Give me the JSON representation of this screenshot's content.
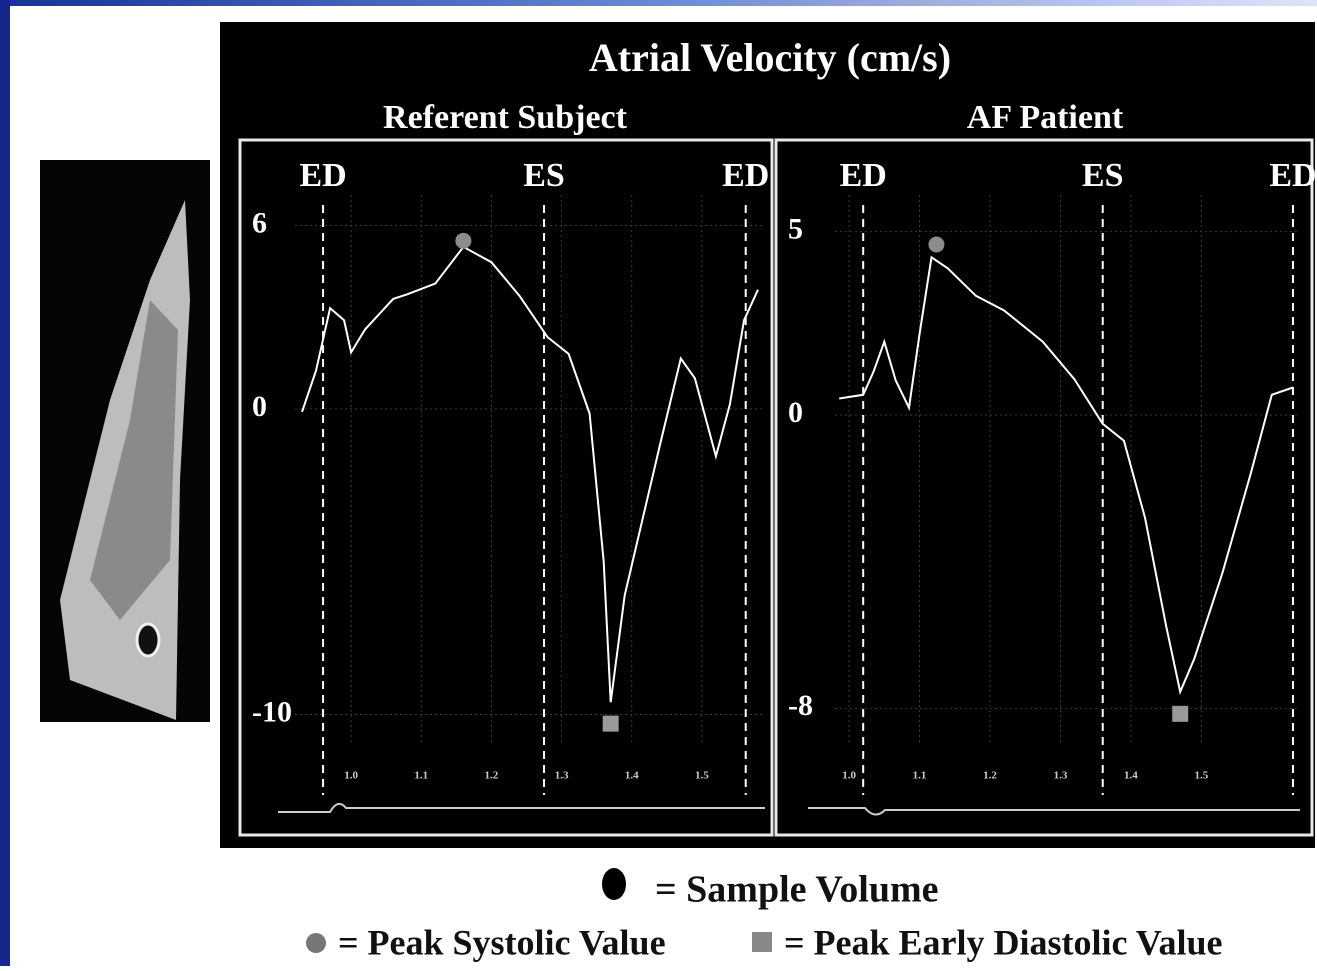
{
  "title": "Atrial Velocity (cm/s)",
  "legend": [
    "= Sample Volume",
    "= Peak Systolic Value",
    "= Peak Early Diastolic Value"
  ],
  "chart_data": [
    {
      "type": "line",
      "title": "Referent Subject",
      "color": "#ffffff",
      "grid": true,
      "x": [
        0.93,
        0.95,
        0.97,
        0.99,
        1.0,
        1.02,
        1.06,
        1.08,
        1.12,
        1.16,
        1.2,
        1.24,
        1.28,
        1.31,
        1.34,
        1.36,
        1.37,
        1.39,
        1.44,
        1.47,
        1.49,
        1.52,
        1.54,
        1.56,
        1.58
      ],
      "values": [
        -0.1,
        1.25,
        3.3,
        2.9,
        1.85,
        2.6,
        3.6,
        3.75,
        4.1,
        5.3,
        4.8,
        3.7,
        2.35,
        1.8,
        -0.15,
        -5.0,
        -9.6,
        -6.1,
        -1.2,
        1.65,
        1.0,
        -1.55,
        0.15,
        2.9,
        3.9
      ],
      "xlim": [
        0.92,
        1.59
      ],
      "ylim": [
        -11,
        7
      ],
      "xticks": [
        {
          "value": 1.0,
          "label": "1.0"
        },
        1.1,
        1.2,
        1.3,
        1.4,
        1.5
      ],
      "yticks": [
        -10,
        0,
        6
      ],
      "events": [
        {
          "label": "ED",
          "x": 0.96
        },
        {
          "label": "ES",
          "x": 1.275
        },
        {
          "label": "ED",
          "x": 1.5625
        }
      ],
      "peak_systolic": {
        "x": 1.16,
        "y": 5.5,
        "color": "#8c8c8c"
      },
      "peak_early_diastolic": {
        "x": 1.37,
        "y": -10.3,
        "color": "#9a9a9a"
      }
    },
    {
      "type": "line",
      "title": "AF Patient",
      "color": "#ffffff",
      "grid": true,
      "x": [
        0.986,
        1.02,
        1.035,
        1.05,
        1.066,
        1.085,
        1.1,
        1.117,
        1.14,
        1.18,
        1.22,
        1.275,
        1.32,
        1.36,
        1.39,
        1.42,
        1.45,
        1.47,
        1.49,
        1.53,
        1.57,
        1.6,
        1.63
      ],
      "values": [
        0.45,
        0.55,
        1.2,
        2.0,
        0.95,
        0.2,
        2.2,
        4.3,
        4.0,
        3.25,
        2.85,
        2.0,
        0.97,
        -0.24,
        -0.7,
        -2.8,
        -5.75,
        -7.55,
        -6.65,
        -4.3,
        -1.6,
        0.55,
        0.75
      ],
      "xlim": [
        0.98,
        1.64
      ],
      "ylim": [
        -9,
        6
      ],
      "xticks": [
        {
          "value": 1.0,
          "label": "1.0"
        },
        1.1,
        1.2,
        1.3,
        1.4,
        1.5
      ],
      "yticks": [
        -8,
        0,
        5
      ],
      "events": [
        {
          "label": "ED",
          "x": 1.02
        },
        {
          "label": "ES",
          "x": 1.36
        },
        {
          "label": "ED",
          "x": 1.63
        }
      ],
      "peak_systolic": {
        "x": 1.124,
        "y": 4.65,
        "color": "#8c8c8c"
      },
      "peak_early_diastolic": {
        "x": 1.47,
        "y": -8.15,
        "color": "#9a9a9a"
      }
    }
  ]
}
